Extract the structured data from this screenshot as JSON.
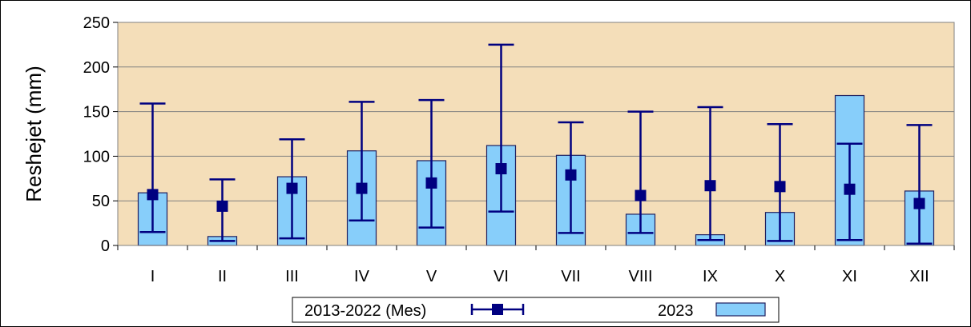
{
  "chart_data": {
    "type": "bar",
    "ylabel": "Reshejet (mm)",
    "ylim": [
      0,
      250
    ],
    "yticks": [
      0,
      50,
      100,
      150,
      200,
      250
    ],
    "grid": true,
    "legend_position": "bottom",
    "categories": [
      "I",
      "II",
      "III",
      "IV",
      "V",
      "VI",
      "VII",
      "VIII",
      "IX",
      "X",
      "XI",
      "XII"
    ],
    "series": [
      {
        "name": "2023",
        "kind": "bar",
        "values": [
          59,
          10,
          77,
          106,
          95,
          112,
          101,
          35,
          12,
          37,
          168,
          61
        ]
      },
      {
        "name": "2013-2022 (Mes)",
        "kind": "errorbar",
        "mean": [
          57,
          44,
          64,
          64,
          70,
          86,
          79,
          56,
          67,
          66,
          63,
          47
        ],
        "min": [
          15,
          5,
          8,
          28,
          20,
          38,
          14,
          14,
          6,
          5,
          6,
          2
        ],
        "max": [
          159,
          74,
          119,
          161,
          163,
          225,
          138,
          150,
          155,
          136,
          114,
          135
        ]
      }
    ],
    "colors": {
      "plot_background": "#F4DEB9",
      "bar_fill": "#87CEFA",
      "bar_stroke": "#1F1F5E",
      "errorbar": "#000080",
      "gridline": "#808080"
    }
  }
}
